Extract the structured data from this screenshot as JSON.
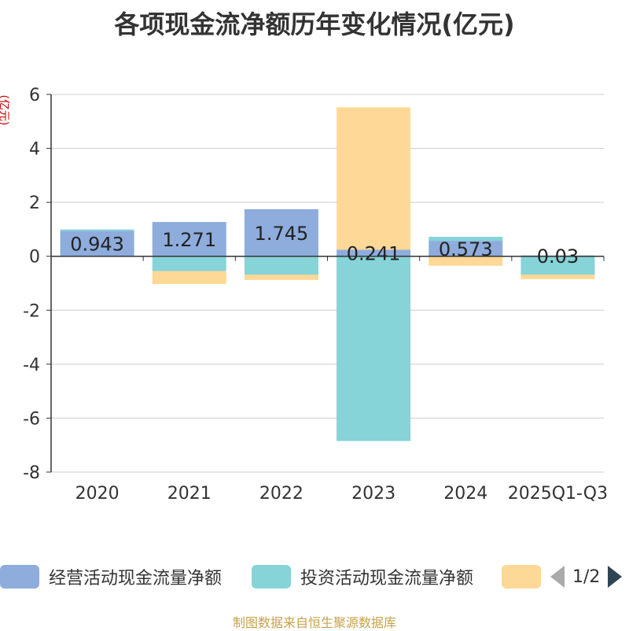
{
  "chart_data": {
    "type": "bar",
    "stacked": true,
    "title": "各项现金流净额历年变化情况(亿元)",
    "ylabel": "(亿元)",
    "xlabel": "",
    "ylim": [
      -8,
      6
    ],
    "yticks": [
      "6",
      "4",
      "2",
      "0",
      "-2",
      "-4",
      "-6",
      "-8"
    ],
    "ytick_values": [
      6,
      4,
      2,
      0,
      -2,
      -4,
      -6,
      -8
    ],
    "categories": [
      "2020",
      "2021",
      "2022",
      "2023",
      "2024",
      "2025Q1-Q3"
    ],
    "series": [
      {
        "name": "经营活动现金流量净额",
        "color": "#8eacdc",
        "values": [
          0.943,
          1.271,
          1.745,
          0.241,
          0.573,
          0.03
        ]
      },
      {
        "name": "投资活动现金流量净额",
        "color": "#86d3d8",
        "values": [
          0.05,
          -0.55,
          -0.68,
          -6.85,
          0.15,
          -0.68
        ]
      },
      {
        "name": "",
        "color": "#fed896",
        "values": [
          0,
          -0.48,
          -0.2,
          5.28,
          -0.35,
          -0.17
        ]
      }
    ],
    "data_labels": [
      "0.943",
      "1.271",
      "1.745",
      "0.241",
      "0.573",
      "0.03"
    ],
    "grid": true,
    "legend": "bottom"
  },
  "legend": {
    "page_text": "1/2"
  },
  "source": "制图数据来自恒生聚源数据库"
}
